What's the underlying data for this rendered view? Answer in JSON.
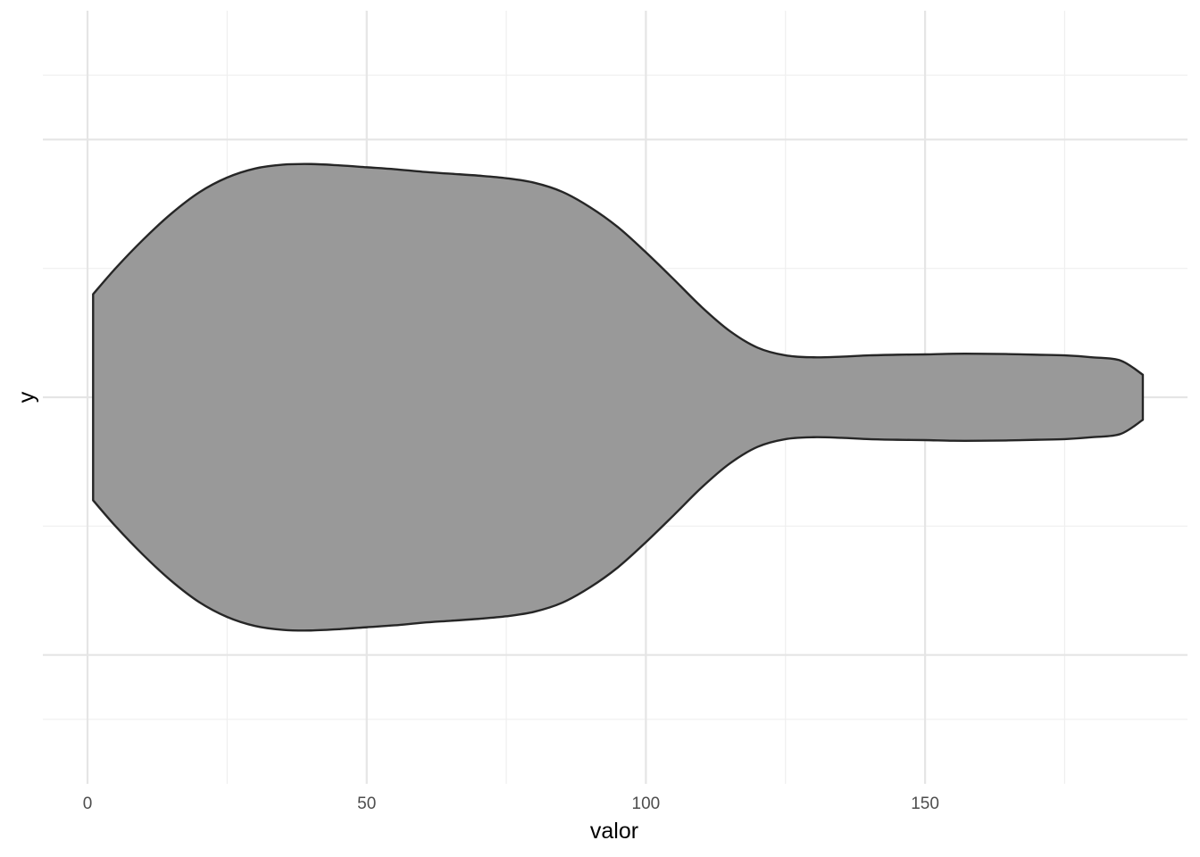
{
  "chart_data": {
    "type": "violin",
    "orientation": "horizontal",
    "xlabel": "valor",
    "ylabel": "y",
    "xlim": [
      -8,
      197
    ],
    "ylim": [
      0.4,
      1.6
    ],
    "x_ticks": [
      0,
      50,
      100,
      150
    ],
    "x_tick_labels": [
      "0",
      "50",
      "100",
      "150"
    ],
    "grid": true,
    "legend": "none",
    "fill_color": "#999999",
    "outline_color": "#262626",
    "violin": {
      "center": 1.0,
      "max_half_width": 0.36,
      "range": [
        1,
        189
      ],
      "density_profile": [
        {
          "x": 1,
          "half_width": 0.16
        },
        {
          "x": 5,
          "half_width": 0.2
        },
        {
          "x": 10,
          "half_width": 0.245
        },
        {
          "x": 15,
          "half_width": 0.285
        },
        {
          "x": 20,
          "half_width": 0.318
        },
        {
          "x": 25,
          "half_width": 0.341
        },
        {
          "x": 30,
          "half_width": 0.355
        },
        {
          "x": 35,
          "half_width": 0.361
        },
        {
          "x": 40,
          "half_width": 0.362
        },
        {
          "x": 45,
          "half_width": 0.36
        },
        {
          "x": 50,
          "half_width": 0.357
        },
        {
          "x": 55,
          "half_width": 0.354
        },
        {
          "x": 60,
          "half_width": 0.35
        },
        {
          "x": 65,
          "half_width": 0.347
        },
        {
          "x": 70,
          "half_width": 0.344
        },
        {
          "x": 75,
          "half_width": 0.34
        },
        {
          "x": 80,
          "half_width": 0.333
        },
        {
          "x": 85,
          "half_width": 0.319
        },
        {
          "x": 90,
          "half_width": 0.295
        },
        {
          "x": 95,
          "half_width": 0.264
        },
        {
          "x": 100,
          "half_width": 0.225
        },
        {
          "x": 105,
          "half_width": 0.183
        },
        {
          "x": 110,
          "half_width": 0.14
        },
        {
          "x": 115,
          "half_width": 0.103
        },
        {
          "x": 120,
          "half_width": 0.077
        },
        {
          "x": 125,
          "half_width": 0.065
        },
        {
          "x": 130,
          "half_width": 0.062
        },
        {
          "x": 135,
          "half_width": 0.063
        },
        {
          "x": 140,
          "half_width": 0.065
        },
        {
          "x": 145,
          "half_width": 0.066
        },
        {
          "x": 150,
          "half_width": 0.0665
        },
        {
          "x": 155,
          "half_width": 0.0675
        },
        {
          "x": 160,
          "half_width": 0.0675
        },
        {
          "x": 165,
          "half_width": 0.067
        },
        {
          "x": 170,
          "half_width": 0.066
        },
        {
          "x": 175,
          "half_width": 0.065
        },
        {
          "x": 180,
          "half_width": 0.062
        },
        {
          "x": 185,
          "half_width": 0.057
        },
        {
          "x": 189,
          "half_width": 0.035
        }
      ]
    }
  }
}
